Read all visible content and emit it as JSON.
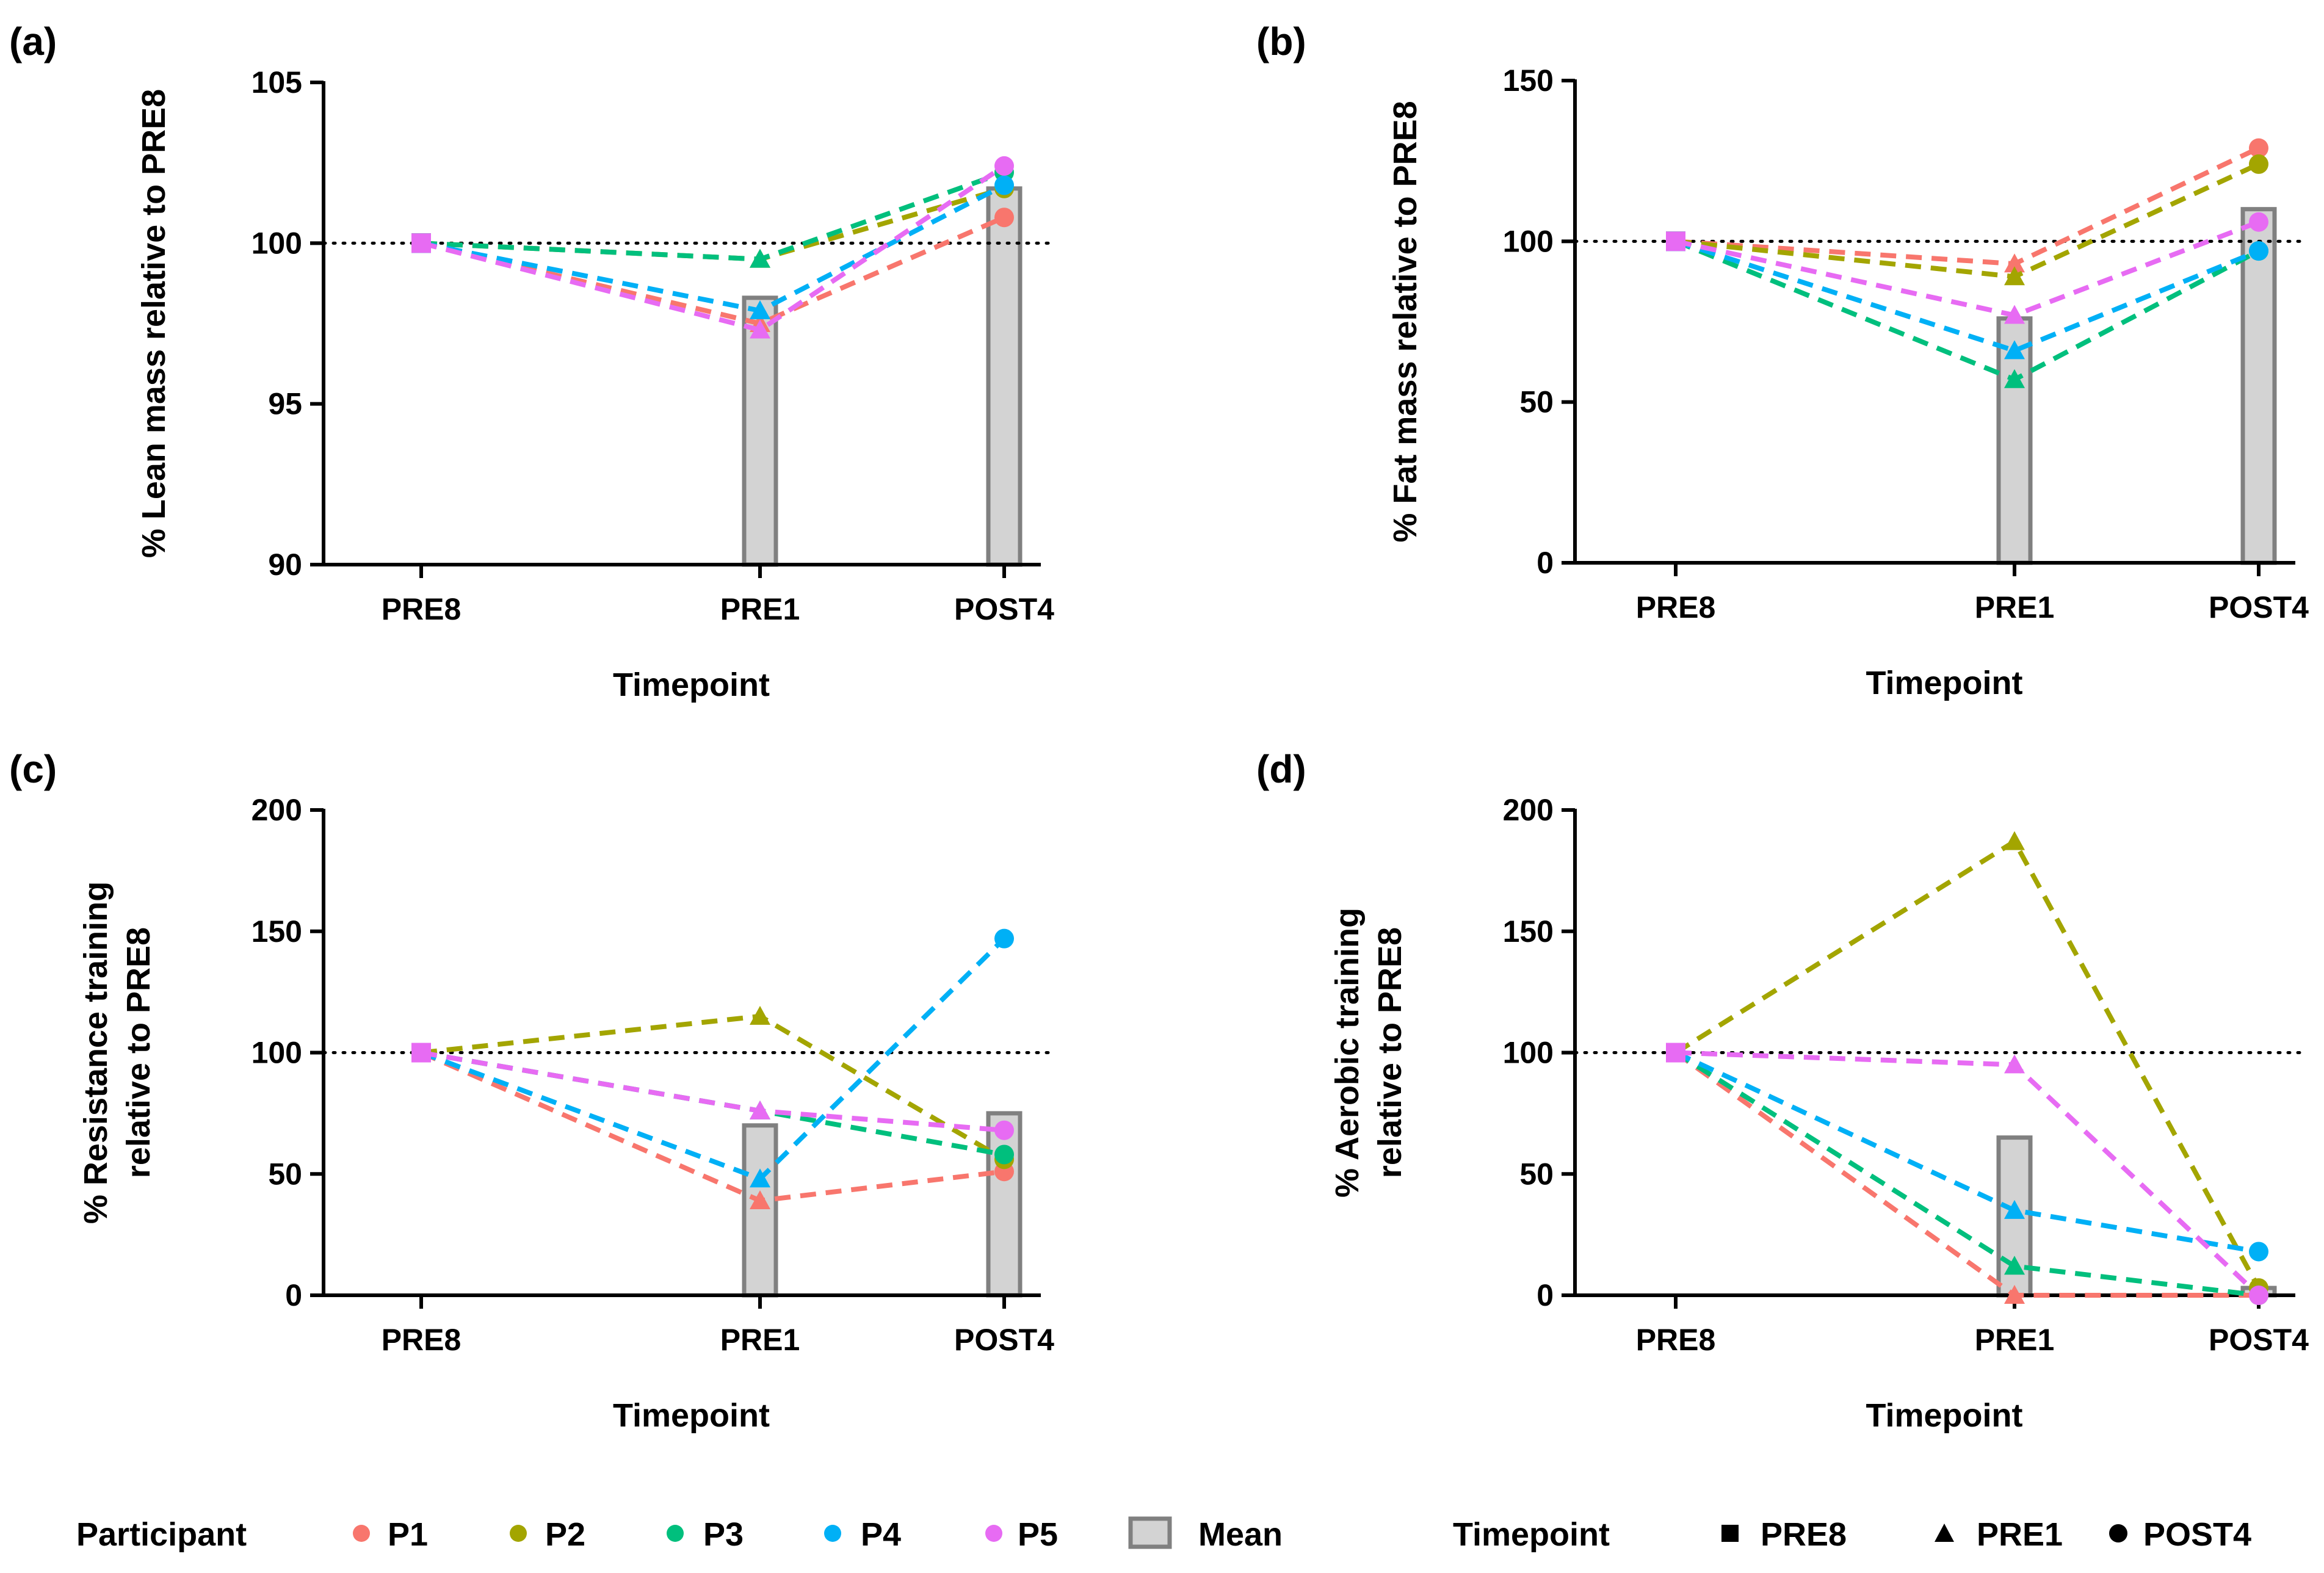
{
  "legend": {
    "participant_title": "Participant",
    "participants": [
      {
        "label": "P1",
        "color": "#F8766D"
      },
      {
        "label": "P2",
        "color": "#A3A500"
      },
      {
        "label": "P3",
        "color": "#00BF7D"
      },
      {
        "label": "P4",
        "color": "#00B0F6"
      },
      {
        "label": "P5",
        "color": "#E76BF3"
      }
    ],
    "mean_label": "Mean",
    "mean_fill": "#d3d3d3",
    "mean_stroke": "#808080",
    "timepoint_title": "Timepoint",
    "timepoints": [
      {
        "label": "PRE8",
        "shape": "square"
      },
      {
        "label": "PRE1",
        "shape": "triangle"
      },
      {
        "label": "POST4",
        "shape": "circle"
      }
    ]
  },
  "chart_data": [
    {
      "panel_label": "(a)",
      "type": "line",
      "ylabel": [
        "% Lean mass relative to PRE8"
      ],
      "xlabel": "Timepoint",
      "categories": [
        "PRE8",
        "PRE1",
        "POST4"
      ],
      "x": [
        0,
        1.4,
        2.4
      ],
      "ylim": [
        90,
        105
      ],
      "yticks": [
        90,
        95,
        100,
        105
      ],
      "reference": 100,
      "mean": [
        null,
        98.3,
        101.7
      ],
      "series": [
        {
          "name": "P1",
          "values": [
            100,
            97.5,
            100.8
          ]
        },
        {
          "name": "P2",
          "values": [
            100,
            99.5,
            101.7
          ]
        },
        {
          "name": "P3",
          "values": [
            100,
            99.5,
            102.2
          ]
        },
        {
          "name": "P4",
          "values": [
            100,
            97.9,
            101.8
          ]
        },
        {
          "name": "P5",
          "values": [
            100,
            97.3,
            102.4
          ]
        }
      ]
    },
    {
      "panel_label": "(b)",
      "type": "line",
      "ylabel": [
        "% Fat mass relative to PRE8"
      ],
      "xlabel": "Timepoint",
      "categories": [
        "PRE8",
        "PRE1",
        "POST4"
      ],
      "x": [
        0,
        1.4,
        2.4
      ],
      "ylim": [
        0,
        150
      ],
      "yticks": [
        0,
        50,
        100,
        150
      ],
      "reference": 100,
      "mean": [
        null,
        76,
        110
      ],
      "series": [
        {
          "name": "P1",
          "values": [
            100,
            93,
            129
          ]
        },
        {
          "name": "P2",
          "values": [
            100,
            89,
            124
          ]
        },
        {
          "name": "P3",
          "values": [
            100,
            57,
            97
          ]
        },
        {
          "name": "P4",
          "values": [
            100,
            66,
            97
          ]
        },
        {
          "name": "P5",
          "values": [
            100,
            77,
            106
          ]
        }
      ]
    },
    {
      "panel_label": "(c)",
      "type": "line",
      "ylabel": [
        "% Resistance training",
        "relative to PRE8"
      ],
      "xlabel": "Timepoint",
      "categories": [
        "PRE8",
        "PRE1",
        "POST4"
      ],
      "x": [
        0,
        1.4,
        2.4
      ],
      "ylim": [
        0,
        200
      ],
      "yticks": [
        0,
        50,
        100,
        150,
        200
      ],
      "reference": 100,
      "mean": [
        null,
        70,
        75
      ],
      "series": [
        {
          "name": "P1",
          "values": [
            100,
            39,
            51
          ]
        },
        {
          "name": "P2",
          "values": [
            100,
            115,
            56
          ]
        },
        {
          "name": "P3",
          "values": [
            100,
            76,
            58
          ]
        },
        {
          "name": "P4",
          "values": [
            100,
            48,
            147
          ]
        },
        {
          "name": "P5",
          "values": [
            100,
            76,
            68
          ]
        }
      ]
    },
    {
      "panel_label": "(d)",
      "type": "line",
      "ylabel": [
        "% Aerobic training",
        "relative to PRE8"
      ],
      "xlabel": "Timepoint",
      "categories": [
        "PRE8",
        "PRE1",
        "POST4"
      ],
      "x": [
        0,
        1.4,
        2.4
      ],
      "ylim": [
        0,
        200
      ],
      "yticks": [
        0,
        50,
        100,
        150,
        200
      ],
      "reference": 100,
      "mean": [
        null,
        65,
        3
      ],
      "series": [
        {
          "name": "P1",
          "values": [
            100,
            0,
            0
          ]
        },
        {
          "name": "P2",
          "values": [
            100,
            187,
            3
          ]
        },
        {
          "name": "P3",
          "values": [
            100,
            12,
            0
          ]
        },
        {
          "name": "P4",
          "values": [
            100,
            35,
            18
          ]
        },
        {
          "name": "P5",
          "values": [
            100,
            95,
            0
          ]
        }
      ]
    }
  ]
}
